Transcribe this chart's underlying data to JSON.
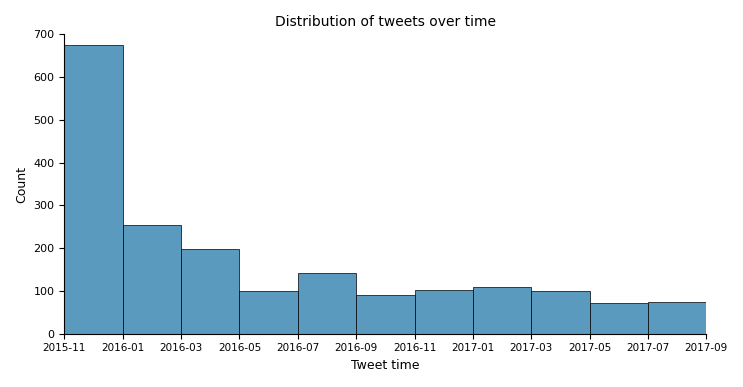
{
  "title": "Distribution of tweets over time",
  "xlabel": "Tweet time",
  "ylabel": "Count",
  "bar_color": "#5b9abf",
  "bar_edgecolor": "#000000",
  "bar_linewidth": 0.5,
  "categories": [
    "2015-11",
    "2016-01",
    "2016-03",
    "2016-05",
    "2016-07",
    "2016-09",
    "2016-11",
    "2017-01",
    "2017-03",
    "2017-05",
    "2017-07"
  ],
  "x_tick_labels": [
    "2015-11",
    "2016-01",
    "2016-03",
    "2016-05",
    "2016-07",
    "2016-09",
    "2016-11",
    "2017-01",
    "2017-03",
    "2017-05",
    "2017-07",
    "2017-09"
  ],
  "values": [
    675,
    255,
    197,
    100,
    143,
    91,
    103,
    110,
    100,
    72,
    75
  ],
  "ylim": [
    0,
    700
  ],
  "yticks": [
    0,
    100,
    200,
    300,
    400,
    500,
    600,
    700
  ]
}
